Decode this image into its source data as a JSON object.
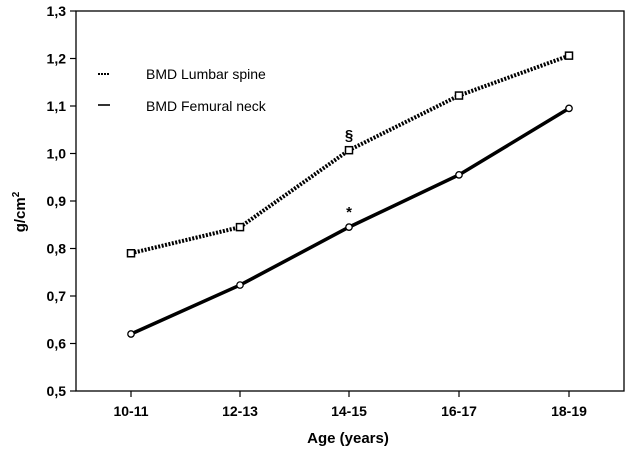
{
  "chart_data": {
    "type": "line",
    "categories": [
      "10-11",
      "12-13",
      "14-15",
      "16-17",
      "18-19"
    ],
    "series": [
      {
        "name": "BMD Lumbar spine",
        "values": [
          0.79,
          0.845,
          1.007,
          1.122,
          1.206
        ],
        "style": "dashed",
        "marker": "square",
        "color": "#000000"
      },
      {
        "name": "BMD Femural neck",
        "values": [
          0.62,
          0.723,
          0.845,
          0.955,
          1.095
        ],
        "style": "solid",
        "marker": "circle",
        "color": "#000000"
      }
    ],
    "xlabel": "Age (years)",
    "ylabel": "g/cm",
    "ylabel_superscript": "2",
    "ylim": [
      0.5,
      1.3
    ],
    "yticks": [
      "0,5",
      "0,6",
      "0,7",
      "0,8",
      "0,9",
      "1,0",
      "1,1",
      "1,2",
      "1,3"
    ],
    "yticks_values": [
      0.5,
      0.6,
      0.7,
      0.8,
      0.9,
      1.0,
      1.1,
      1.2,
      1.3
    ],
    "annotations": [
      {
        "text": "§",
        "series": 0,
        "category": "14-15"
      },
      {
        "text": "*",
        "series": 1,
        "category": "14-15"
      }
    ],
    "legend": "top-left",
    "grid": false
  }
}
